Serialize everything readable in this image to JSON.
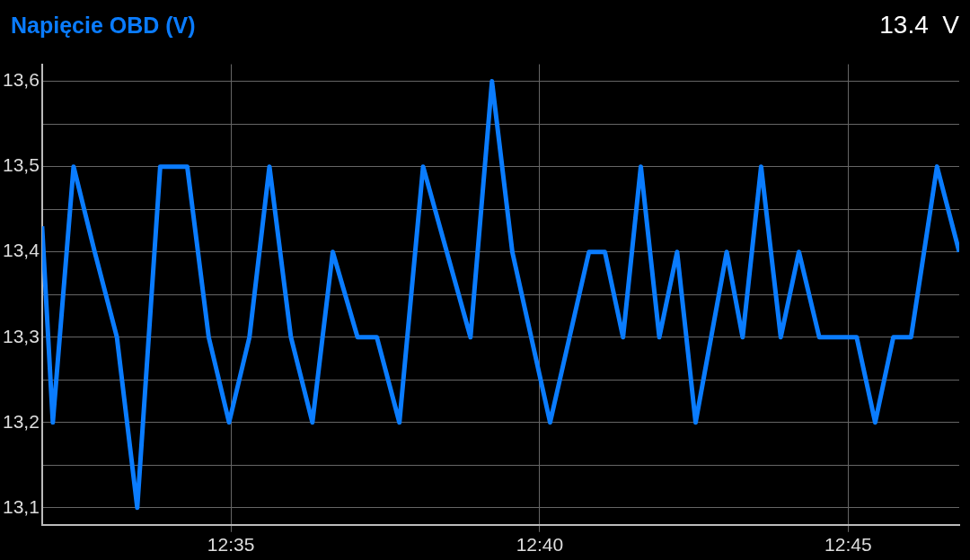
{
  "chart_data": {
    "type": "line",
    "title": "Napięcie OBD (V)",
    "annotations": [
      "13.4  V"
    ],
    "x": [
      12.5323,
      12.5352,
      12.5408,
      12.5465,
      12.5525,
      12.558,
      12.5642,
      12.5715,
      12.5773,
      12.5828,
      12.5883,
      12.5937,
      12.5995,
      12.6053,
      12.6108,
      12.6175,
      12.6227,
      12.6288,
      12.6352,
      12.648,
      12.6538,
      12.6593,
      12.6695,
      12.68,
      12.6843,
      12.6892,
      12.694,
      12.699,
      12.7038,
      12.7088,
      12.7172,
      12.7215,
      12.7265,
      12.7318,
      12.7367,
      12.7422,
      12.7523,
      12.7573,
      12.7622,
      12.767,
      12.774,
      12.78
    ],
    "series": [
      {
        "color": "#0a7cff",
        "values": [
          13.43,
          13.2,
          13.5,
          13.4,
          13.3,
          13.1,
          13.5,
          13.5,
          13.3,
          13.2,
          13.3,
          13.5,
          13.3,
          13.2,
          13.4,
          13.3,
          13.3,
          13.2,
          13.5,
          13.3,
          13.6,
          13.4,
          13.2,
          13.4,
          13.4,
          13.3,
          13.5,
          13.3,
          13.4,
          13.2,
          13.4,
          13.3,
          13.5,
          13.3,
          13.4,
          13.3,
          13.3,
          13.2,
          13.3,
          13.3,
          13.5,
          13.4
        ]
      }
    ],
    "xlim": [
      12.5323,
      12.78
    ],
    "xticks": [
      {
        "value": 12.5833,
        "label": "12:35"
      },
      {
        "value": 12.6667,
        "label": "12:40"
      },
      {
        "value": 12.75,
        "label": "12:45"
      }
    ],
    "ylim": [
      13.08,
      13.62
    ],
    "yticks": [
      {
        "value": 13.1,
        "label": "13,1"
      },
      {
        "value": 13.15,
        "label": null
      },
      {
        "value": 13.2,
        "label": "13,2"
      },
      {
        "value": 13.25,
        "label": null
      },
      {
        "value": 13.3,
        "label": "13,3"
      },
      {
        "value": 13.35,
        "label": null
      },
      {
        "value": 13.4,
        "label": "13,4"
      },
      {
        "value": 13.45,
        "label": null
      },
      {
        "value": 13.5,
        "label": "13,5"
      },
      {
        "value": 13.55,
        "label": null
      },
      {
        "value": 13.6,
        "label": "13,6"
      }
    ],
    "grid": true,
    "legend": false,
    "marker": "none",
    "line_style": "solid"
  }
}
